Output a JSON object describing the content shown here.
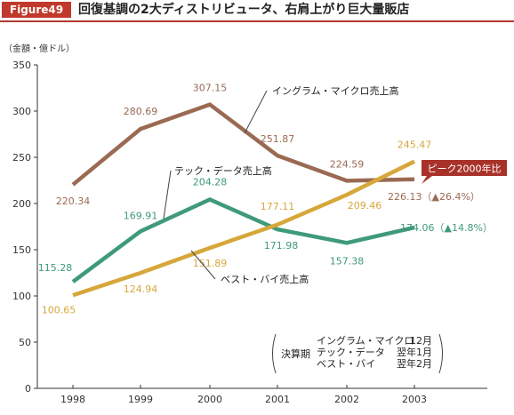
{
  "figure": {
    "badge": "Figure49",
    "title": "回復基調の2大ディストリビュータ、右肩上がり巨大量販店"
  },
  "colors": {
    "badge_bg": "#c0392b",
    "title_rule": "#b03a2e",
    "ingram": "#9a6a53",
    "techdata": "#3f9a7a",
    "bestbuy": "#d6a73a",
    "peak_box": "#a8322a",
    "axis": "#333333"
  },
  "chart_data": {
    "type": "line",
    "unit_label": "（金額・億ドル）",
    "x": [
      "1998",
      "1999",
      "2000",
      "2001",
      "2002",
      "2003"
    ],
    "ylim": [
      0,
      350
    ],
    "yticks": [
      0,
      50,
      100,
      150,
      200,
      250,
      300,
      350
    ],
    "grid": false,
    "series": [
      {
        "key": "ingram",
        "name": "イングラム・マイクロ売上高",
        "values": [
          220.34,
          280.69,
          307.15,
          251.87,
          224.59,
          226.13
        ],
        "labels": [
          "220.34",
          "280.69",
          "307.15",
          "251.87",
          "224.59",
          "226.13"
        ],
        "note": "（▲26.4%）"
      },
      {
        "key": "techdata",
        "name": "テック・データ売上高",
        "values": [
          115.28,
          169.91,
          204.28,
          171.98,
          157.38,
          174.06
        ],
        "labels": [
          "115.28",
          "169.91",
          "204.28",
          "171.98",
          "157.38",
          "174.06"
        ],
        "note": "（▲14.8%）"
      },
      {
        "key": "bestbuy",
        "name": "ベスト・バイ売上高",
        "values": [
          100.65,
          124.94,
          151.89,
          177.11,
          209.46,
          245.47
        ],
        "labels": [
          "100.65",
          "124.94",
          "151.89",
          "177.11",
          "209.46",
          "245.47"
        ],
        "note": ""
      }
    ],
    "peak_callout": "ピーク2000年比",
    "fiscal_box": {
      "heading": "決算期",
      "rows": [
        {
          "company": "イングラム・マイクロ",
          "month": "12月"
        },
        {
          "company": "テック・データ",
          "month": "翌年1月"
        },
        {
          "company": "ベスト・バイ",
          "month": "翌年2月"
        }
      ]
    }
  }
}
